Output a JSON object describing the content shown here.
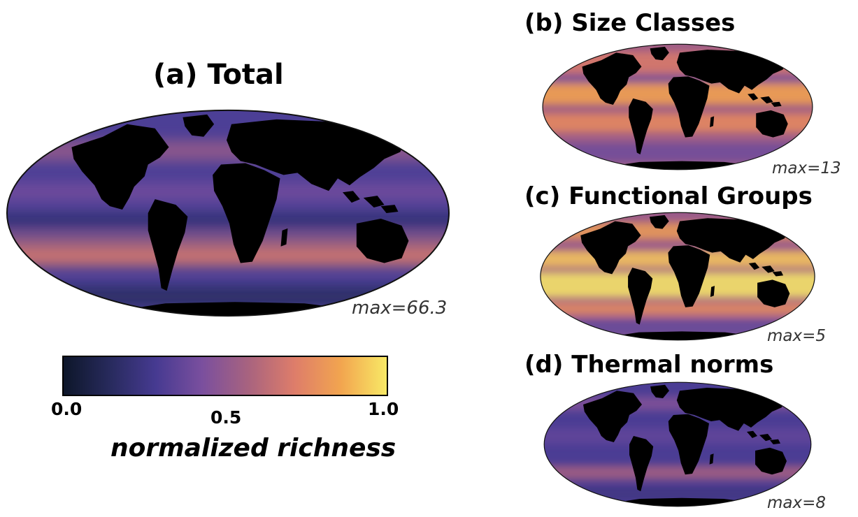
{
  "panels": {
    "a": {
      "title": "(a) Total",
      "max_label": "max=66.3"
    },
    "b": {
      "title": "(b) Size Classes",
      "max_label": "max=13"
    },
    "c": {
      "title": "(c) Functional Groups",
      "max_label": "max=5"
    },
    "d": {
      "title": "(d) Thermal norms",
      "max_label": "max=8"
    }
  },
  "colorbar": {
    "title": "normalized richness",
    "ticks": [
      "0.0",
      "0.5",
      "1.0"
    ],
    "range": [
      0.0,
      1.0
    ],
    "colors": [
      "#0d1629",
      "#272a5c",
      "#463a91",
      "#7a4f9e",
      "#a8637f",
      "#de7d6a",
      "#f2a54f",
      "#f8ea66"
    ]
  }
}
